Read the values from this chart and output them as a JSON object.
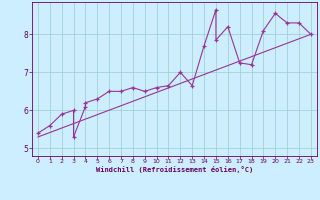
{
  "title": "",
  "xlabel": "Windchill (Refroidissement éolien,°C)",
  "ylabel": "",
  "background_color": "#cceeff",
  "line_color": "#993399",
  "grid_color": "#99cccc",
  "axis_color": "#660066",
  "text_color": "#660066",
  "xlim": [
    -0.5,
    23.5
  ],
  "ylim": [
    4.8,
    8.85
  ],
  "yticks": [
    5,
    6,
    7,
    8
  ],
  "xticks": [
    0,
    1,
    2,
    3,
    4,
    5,
    6,
    7,
    8,
    9,
    10,
    11,
    12,
    13,
    14,
    15,
    16,
    17,
    18,
    19,
    20,
    21,
    22,
    23
  ],
  "data_x": [
    0,
    1,
    2,
    3,
    3,
    4,
    4,
    5,
    6,
    7,
    8,
    9,
    10,
    11,
    12,
    13,
    14,
    15,
    15,
    16,
    17,
    18,
    19,
    20,
    21,
    22,
    23
  ],
  "data_y": [
    5.4,
    5.6,
    5.9,
    6.0,
    5.3,
    6.1,
    6.2,
    6.3,
    6.5,
    6.5,
    6.6,
    6.5,
    6.6,
    6.65,
    7.0,
    6.65,
    7.7,
    8.65,
    7.85,
    8.2,
    7.25,
    7.2,
    8.1,
    8.55,
    8.3,
    8.3,
    8.0
  ],
  "trend_x": [
    0,
    23
  ],
  "trend_y": [
    5.3,
    8.0
  ],
  "figsize": [
    3.2,
    2.0
  ],
  "dpi": 100
}
